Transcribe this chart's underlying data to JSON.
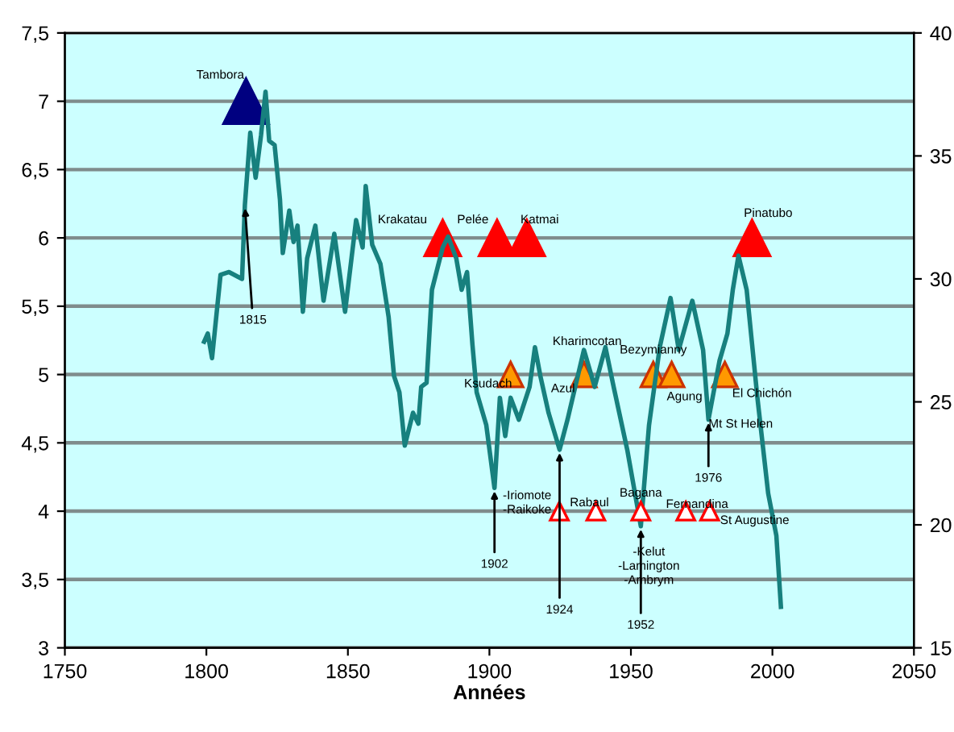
{
  "chart_data": {
    "type": "line",
    "xlabel": "Années",
    "xlim": [
      1750,
      2050
    ],
    "xticks": [
      1750,
      1800,
      1850,
      1900,
      1950,
      2000,
      2050
    ],
    "ylim": [
      3,
      7.5
    ],
    "yticks": [
      {
        "value": 3,
        "label": "3"
      },
      {
        "value": 3.5,
        "label": "3,5"
      },
      {
        "value": 4,
        "label": "4"
      },
      {
        "value": 4.5,
        "label": "4,5"
      },
      {
        "value": 5,
        "label": "5"
      },
      {
        "value": 5.5,
        "label": "5,5"
      },
      {
        "value": 6,
        "label": "6"
      },
      {
        "value": 6.5,
        "label": "6,5"
      },
      {
        "value": 7,
        "label": "7"
      },
      {
        "value": 7.5,
        "label": "7,5"
      }
    ],
    "y2lim": [
      15,
      40
    ],
    "y2ticks": [
      15,
      20,
      25,
      30,
      35,
      40
    ],
    "grid": "y",
    "legend": false,
    "series": [
      {
        "type": "line",
        "color": "#17807e",
        "x": [
          1799.2,
          1800.5,
          1802,
          1805,
          1808,
          1812.6,
          1813.6,
          1815.5,
          1817.4,
          1819.3,
          1820.9,
          1822.2,
          1824.1,
          1826,
          1827,
          1829.3,
          1830.8,
          1832.2,
          1834.1,
          1835.6,
          1838.5,
          1841.4,
          1845.2,
          1849,
          1852.9,
          1855.2,
          1856.3,
          1858.6,
          1861.5,
          1864.4,
          1866.3,
          1868.2,
          1870.1,
          1873,
          1874.9,
          1875.9,
          1877.8,
          1879.7,
          1883.5,
          1885.4,
          1888.3,
          1890.2,
          1892.1,
          1894,
          1895.5,
          1898.9,
          1901.8,
          1903.7,
          1905.6,
          1907.5,
          1910.4,
          1914.2,
          1916.1,
          1918,
          1920.9,
          1924.8,
          1927.6,
          1933.4,
          1937.2,
          1941,
          1943.9,
          1948.7,
          1953.5,
          1956.4,
          1960.2,
          1964,
          1966.9,
          1971.7,
          1975.5,
          1977.4,
          1981.3,
          1984.1,
          1986,
          1988,
          1990.9,
          1994.7,
          1998.5,
          2001.4,
          2003
        ],
        "values": [
          5.24,
          5.3,
          5.12,
          5.73,
          5.75,
          5.7,
          6.24,
          6.77,
          6.44,
          6.75,
          7.07,
          6.71,
          6.68,
          6.28,
          5.89,
          6.2,
          5.97,
          6.09,
          5.46,
          5.85,
          6.09,
          5.54,
          6.03,
          5.46,
          6.13,
          5.93,
          6.38,
          5.95,
          5.81,
          5.42,
          4.99,
          4.87,
          4.48,
          4.72,
          4.64,
          4.91,
          4.94,
          5.62,
          5.93,
          6.01,
          5.85,
          5.62,
          5.75,
          5.22,
          4.87,
          4.63,
          4.17,
          4.83,
          4.55,
          4.83,
          4.67,
          4.91,
          5.2,
          4.99,
          4.72,
          4.45,
          4.67,
          5.18,
          4.91,
          5.2,
          4.91,
          4.45,
          3.89,
          4.63,
          5.2,
          5.56,
          5.18,
          5.54,
          5.18,
          4.67,
          5.1,
          5.3,
          5.62,
          5.87,
          5.62,
          4.83,
          4.13,
          3.82,
          3.3
        ]
      },
      {
        "type": "scatter",
        "marker": "triangle",
        "color": "#000080",
        "x": [
          1814
        ],
        "values": [
          7
        ]
      },
      {
        "type": "scatter",
        "marker": "triangle",
        "color": "#ff0000",
        "x": [
          1883.5,
          1902.7,
          1913.2,
          1992.8
        ],
        "values": [
          6,
          6,
          6,
          6
        ]
      },
      {
        "type": "scatter",
        "marker": "triangle",
        "color": "#ff9900",
        "x": [
          1907.5,
          1933.4,
          1957.9,
          1964.4,
          1983.2
        ],
        "values": [
          5,
          5,
          5,
          5,
          5
        ]
      },
      {
        "type": "scatter",
        "marker": "triangle",
        "color": "#ffffff",
        "x": [
          1924.7,
          1937.6,
          1953.5,
          1969.4,
          1977.8
        ],
        "values": [
          4,
          4,
          4,
          4,
          4
        ]
      }
    ],
    "annotations": [
      {
        "text": "Tambora",
        "x": 1814,
        "y": 7
      },
      {
        "text": "Krakatau",
        "x": 1883.5,
        "y": 6
      },
      {
        "text": "Pelée",
        "x": 1902.7,
        "y": 6
      },
      {
        "text": "Katmai",
        "x": 1913.2,
        "y": 6
      },
      {
        "text": "Pinatubo",
        "x": 1992.8,
        "y": 6
      },
      {
        "text": "Kharimcotan",
        "x": 1933.4,
        "y": 5.18
      },
      {
        "text": "Bezymianny",
        "x": 1957.9,
        "y": 5
      },
      {
        "text": "Ksudach",
        "x": 1907.5,
        "y": 5
      },
      {
        "text": "Azul",
        "x": 1933.4,
        "y": 5
      },
      {
        "text": "Agung",
        "x": 1964.4,
        "y": 5
      },
      {
        "text": "El Chichón",
        "x": 1983.2,
        "y": 5
      },
      {
        "text": "Mt St Helen",
        "x": 1977.4,
        "y": 4.67
      },
      {
        "text": "-Iriomote\n-Raikoke",
        "x": 1924.7,
        "y": 4
      },
      {
        "text": "Rabaul",
        "x": 1937.6,
        "y": 4
      },
      {
        "text": "Bagana",
        "x": 1953.5,
        "y": 4
      },
      {
        "text": "Fernandina",
        "x": 1969.4,
        "y": 4
      },
      {
        "text": "St Augustine",
        "x": 1977.8,
        "y": 4
      },
      {
        "text": "-Kelut\n-Lamington\n-Ambrym",
        "x": 1953.5,
        "y": 3.89
      },
      {
        "text": "1815",
        "x": 1813.6,
        "y": 6.24
      },
      {
        "text": "1902",
        "x": 1901.8,
        "y": 4.17
      },
      {
        "text": "1924",
        "x": 1924.8,
        "y": 4.45
      },
      {
        "text": "1952",
        "x": 1953.5,
        "y": 3.89
      },
      {
        "text": "1976",
        "x": 1977.4,
        "y": 4.67
      }
    ]
  }
}
